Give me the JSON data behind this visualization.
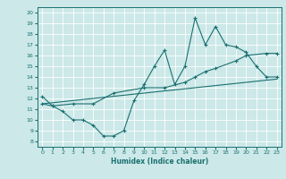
{
  "xlabel": "Humidex (Indice chaleur)",
  "bg_color": "#cce8e8",
  "grid_color": "#ffffff",
  "line_color": "#1a7070",
  "xlim": [
    -0.5,
    23.5
  ],
  "ylim": [
    7.5,
    20.5
  ],
  "xticks": [
    0,
    1,
    2,
    3,
    4,
    5,
    6,
    7,
    8,
    9,
    10,
    11,
    12,
    13,
    14,
    15,
    16,
    17,
    18,
    19,
    20,
    21,
    22,
    23
  ],
  "yticks": [
    8,
    9,
    10,
    11,
    12,
    13,
    14,
    15,
    16,
    17,
    18,
    19,
    20
  ],
  "line1_x": [
    0,
    1,
    2,
    3,
    4,
    5,
    6,
    7,
    8,
    9,
    10,
    11,
    12,
    13,
    14,
    15,
    16,
    17,
    18,
    19,
    20,
    21,
    22,
    23
  ],
  "line1_y": [
    12.2,
    11.3,
    10.8,
    10.0,
    10.0,
    9.5,
    8.5,
    8.5,
    9.0,
    11.8,
    13.3,
    15.0,
    16.5,
    13.3,
    15.0,
    19.5,
    17.0,
    18.7,
    17.0,
    16.8,
    16.3,
    15.0,
    14.0,
    14.0
  ],
  "line2_x": [
    0,
    1,
    3,
    5,
    7,
    10,
    12,
    14,
    15,
    16,
    17,
    19,
    20,
    22,
    23
  ],
  "line2_y": [
    11.5,
    11.3,
    11.5,
    11.5,
    12.5,
    13.0,
    13.0,
    13.5,
    14.0,
    14.5,
    14.8,
    15.5,
    16.0,
    16.2,
    16.2
  ],
  "line3_x": [
    0,
    23
  ],
  "line3_y": [
    11.5,
    13.8
  ],
  "figwidth": 3.2,
  "figheight": 2.0,
  "dpi": 100
}
